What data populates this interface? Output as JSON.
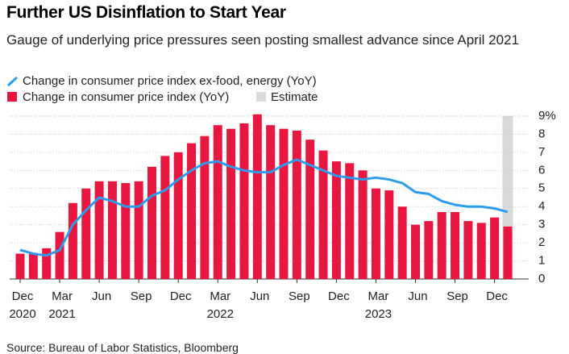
{
  "chart_data": {
    "type": "bar",
    "title": "Further US Disinflation to Start Year",
    "subtitle": "Gauge of underlying price pressures seen posting smallest advance since April 2021",
    "source": "Source: Bureau of Labor Statistics, Bloomberg",
    "categories": [
      "Dec 2020",
      null,
      null,
      "Mar 2021",
      null,
      null,
      "Jun",
      null,
      null,
      "Sep",
      null,
      null,
      "Dec",
      null,
      null,
      "Mar 2022",
      null,
      null,
      "Jun",
      null,
      null,
      "Sep",
      null,
      null,
      "Dec",
      null,
      null,
      "Mar 2023",
      null,
      null,
      "Jun",
      null,
      null,
      "Sep",
      null,
      null,
      "Dec",
      null
    ],
    "series": [
      {
        "name": "Change in consumer price index (YoY)",
        "type": "bar",
        "color": "#e8173f",
        "values": [
          1.4,
          1.4,
          1.7,
          2.6,
          4.2,
          5.0,
          5.4,
          5.4,
          5.3,
          5.4,
          6.2,
          6.8,
          7.0,
          7.5,
          7.9,
          8.5,
          8.3,
          8.6,
          9.1,
          8.5,
          8.3,
          8.2,
          7.7,
          7.1,
          6.5,
          6.4,
          6.0,
          5.0,
          4.9,
          4.0,
          3.0,
          3.2,
          3.7,
          3.7,
          3.2,
          3.1,
          3.4,
          2.9
        ]
      },
      {
        "name": "Change in consumer price index ex-food, energy (YoY)",
        "type": "line",
        "color": "#2d9cec",
        "values": [
          1.6,
          1.4,
          1.3,
          1.6,
          3.0,
          3.8,
          4.5,
          4.3,
          4.0,
          4.0,
          4.6,
          4.9,
          5.5,
          6.0,
          6.4,
          6.5,
          6.2,
          6.0,
          5.9,
          5.9,
          6.3,
          6.6,
          6.3,
          6.0,
          5.7,
          5.6,
          5.5,
          5.6,
          5.5,
          5.3,
          4.8,
          4.7,
          4.3,
          4.1,
          4.0,
          4.0,
          3.9,
          3.7
        ]
      }
    ],
    "estimate": {
      "label": "Estimate",
      "color": "#d9d9d9",
      "index": 37
    },
    "ylim": [
      0,
      9
    ],
    "yticks": [
      0,
      1,
      2,
      3,
      4,
      5,
      6,
      7,
      8,
      {
        "value": 9,
        "label": "9%"
      }
    ],
    "grid": true
  }
}
